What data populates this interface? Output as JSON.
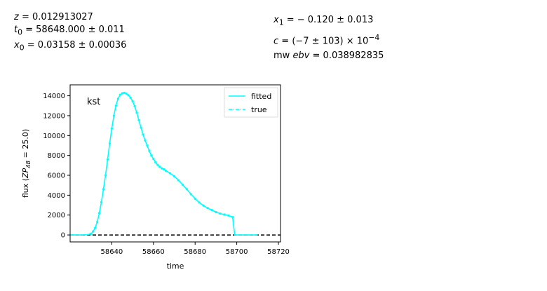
{
  "params": {
    "z": {
      "name": "z",
      "value": " = 0.012913027"
    },
    "t0": {
      "name": "t",
      "sub": "0",
      "value": " = 58648.000 ± 0.011"
    },
    "x0": {
      "name": "x",
      "sub": "0",
      "value": " = 0.03158 ± 0.00036"
    },
    "x1": {
      "name": "x",
      "sub": "1",
      "value": " = − 0.120 ± 0.013"
    },
    "c": {
      "name": "c",
      "value": " = (−7 ± 103) × 10",
      "exp": "−4"
    },
    "mwebv": {
      "prefix": "mw",
      "name": "ebv",
      "value": " = 0.038982835"
    }
  },
  "chart_data": {
    "type": "line",
    "annotation": "kst",
    "xlabel": "time",
    "ylabel": "flux (ZP_AB = 25.0)",
    "xlim": [
      58620,
      58721
    ],
    "ylim": [
      -700,
      15100
    ],
    "xticks": [
      58640,
      58660,
      58680,
      58700,
      58720
    ],
    "yticks": [
      0,
      2000,
      4000,
      6000,
      8000,
      10000,
      12000,
      14000
    ],
    "grid": false,
    "legend_position": "top-right",
    "legend": [
      {
        "label": "fitted",
        "style": "solid",
        "color": "#00ffff"
      },
      {
        "label": "true",
        "style": "dashed",
        "color": "#00ffff"
      }
    ],
    "reference_line": {
      "y": 0,
      "style": "dashed",
      "color": "#000000"
    },
    "series": [
      {
        "name": "fitted",
        "color": "#00ffff",
        "x": [
          58620,
          58626,
          58628,
          58630,
          58631,
          58632,
          58633,
          58634,
          58635,
          58636,
          58637,
          58638,
          58639,
          58640,
          58641,
          58642,
          58643,
          58644,
          58645,
          58646,
          58647,
          58648,
          58649,
          58650,
          58651,
          58652,
          58653,
          58654,
          58655,
          58656,
          58657,
          58658,
          58659,
          58660,
          58661,
          58662,
          58663,
          58664,
          58665,
          58666,
          58668,
          58670,
          58672,
          58674,
          58676,
          58678,
          58680,
          58682,
          58684,
          58686,
          58688,
          58690,
          58692,
          58694,
          58696,
          58698,
          58699,
          58700,
          58702,
          58705,
          58708,
          58710
        ],
        "values": [
          0,
          0,
          20,
          120,
          350,
          700,
          1300,
          2200,
          3300,
          4600,
          6000,
          7600,
          9200,
          10700,
          12000,
          13000,
          13700,
          14100,
          14250,
          14300,
          14200,
          14050,
          13800,
          13450,
          12950,
          12300,
          11550,
          10800,
          10100,
          9500,
          9000,
          8450,
          8000,
          7650,
          7300,
          7050,
          6850,
          6700,
          6600,
          6450,
          6200,
          5900,
          5500,
          5050,
          4600,
          4100,
          3650,
          3250,
          2950,
          2700,
          2500,
          2300,
          2150,
          2050,
          1950,
          1800,
          0,
          0,
          0,
          0,
          0,
          0
        ]
      }
    ]
  }
}
